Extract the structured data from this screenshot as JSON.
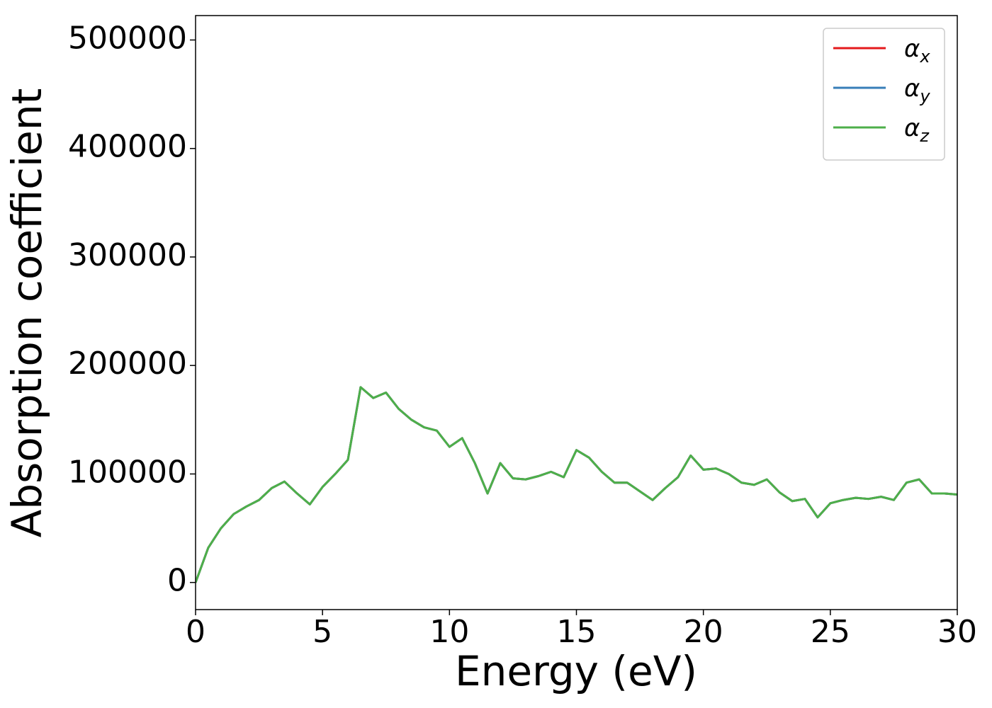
{
  "chart_data": {
    "type": "line",
    "xlabel": "Energy (eV)",
    "ylabel": "Absorption coefficient",
    "x": [
      0,
      0.5,
      1,
      1.5,
      2,
      2.5,
      3,
      3.5,
      4,
      4.5,
      5,
      5.5,
      6,
      6.5,
      7,
      7.5,
      8,
      8.5,
      9,
      9.5,
      10,
      10.5,
      11,
      11.5,
      12,
      12.5,
      13,
      13.5,
      14,
      14.5,
      15,
      15.5,
      16,
      16.5,
      17,
      17.5,
      18,
      18.5,
      19,
      19.5,
      20,
      20.5,
      21,
      21.5,
      22,
      22.5,
      23,
      23.5,
      24,
      24.5,
      25,
      25.5,
      26,
      26.5,
      27,
      27.5,
      28,
      28.5,
      29,
      29.5,
      30
    ],
    "series": [
      {
        "name": "αx",
        "color": "#e41a1c",
        "values": [
          0,
          32000,
          50000,
          63000,
          70000,
          76000,
          87000,
          93000,
          82000,
          72000,
          88000,
          100000,
          113000,
          180000,
          170000,
          175000,
          160000,
          150000,
          143000,
          140000,
          125000,
          133000,
          110000,
          82000,
          110000,
          96000,
          95000,
          98000,
          102000,
          97000,
          122000,
          115000,
          102000,
          92000,
          92000,
          84000,
          76000,
          87000,
          97000,
          117000,
          104000,
          105000,
          100000,
          92000,
          90000,
          95000,
          83000,
          75000,
          77000,
          60000,
          73000,
          76000,
          78000,
          77000,
          79000,
          76000,
          92000,
          95000,
          82000,
          82000,
          81000
        ]
      },
      {
        "name": "αy",
        "color": "#377eb8",
        "values": [
          0,
          32000,
          50000,
          63000,
          70000,
          76000,
          87000,
          93000,
          82000,
          72000,
          88000,
          100000,
          113000,
          180000,
          170000,
          175000,
          160000,
          150000,
          143000,
          140000,
          125000,
          133000,
          110000,
          82000,
          110000,
          96000,
          95000,
          98000,
          102000,
          97000,
          122000,
          115000,
          102000,
          92000,
          92000,
          84000,
          76000,
          87000,
          97000,
          117000,
          104000,
          105000,
          100000,
          92000,
          90000,
          95000,
          83000,
          75000,
          77000,
          60000,
          73000,
          76000,
          78000,
          77000,
          79000,
          76000,
          92000,
          95000,
          82000,
          82000,
          81000
        ]
      },
      {
        "name": "αz",
        "color": "#4daf4a",
        "values": [
          0,
          32000,
          50000,
          63000,
          70000,
          76000,
          87000,
          93000,
          82000,
          72000,
          88000,
          100000,
          113000,
          180000,
          170000,
          175000,
          160000,
          150000,
          143000,
          140000,
          125000,
          133000,
          110000,
          82000,
          110000,
          96000,
          95000,
          98000,
          102000,
          97000,
          122000,
          115000,
          102000,
          92000,
          92000,
          84000,
          76000,
          87000,
          97000,
          117000,
          104000,
          105000,
          100000,
          92000,
          90000,
          95000,
          83000,
          75000,
          77000,
          60000,
          73000,
          76000,
          78000,
          77000,
          79000,
          76000,
          92000,
          95000,
          82000,
          82000,
          81000
        ]
      }
    ],
    "xlim": [
      0,
      30
    ],
    "xticks": [
      0,
      5,
      10,
      15,
      20,
      25,
      30
    ],
    "ylim": [
      -25000,
      522500
    ],
    "yticks": [
      0,
      100000,
      200000,
      300000,
      400000,
      500000
    ],
    "grid": false,
    "legend": "upper right"
  }
}
